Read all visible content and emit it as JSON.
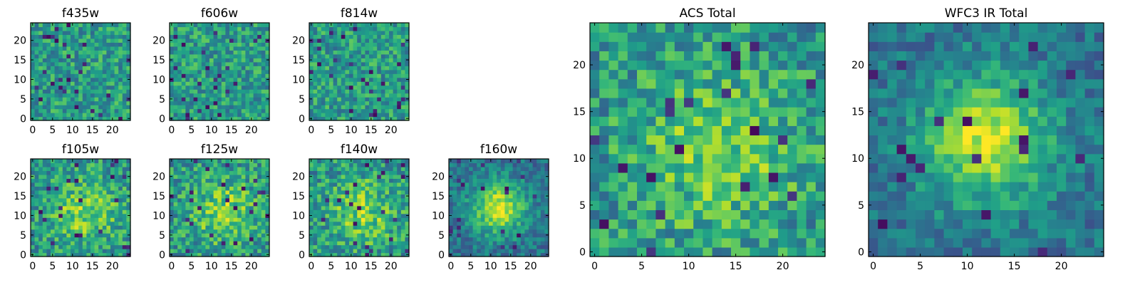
{
  "chart_data": [
    {
      "type": "heatmap",
      "title": "f435w",
      "field": "noise",
      "seed": 11,
      "colormap": "viridis",
      "xlim": [
        0,
        24
      ],
      "ylim": [
        0,
        24
      ],
      "x_ticks": [
        0,
        5,
        10,
        15,
        20
      ],
      "y_ticks": [
        0,
        5,
        10,
        15,
        20
      ]
    },
    {
      "type": "heatmap",
      "title": "f606w",
      "field": "noise",
      "seed": 23,
      "colormap": "viridis",
      "xlim": [
        0,
        24
      ],
      "ylim": [
        0,
        24
      ],
      "x_ticks": [
        0,
        5,
        10,
        15,
        20
      ],
      "y_ticks": [
        0,
        5,
        10,
        15,
        20
      ]
    },
    {
      "type": "heatmap",
      "title": "f814w",
      "field": "noise",
      "seed": 37,
      "colormap": "viridis",
      "xlim": [
        0,
        24
      ],
      "ylim": [
        0,
        24
      ],
      "x_ticks": [
        0,
        5,
        10,
        15,
        20
      ],
      "y_ticks": [
        0,
        5,
        10,
        15,
        20
      ]
    },
    {
      "type": "heatmap",
      "title": "f105w",
      "field": "faint-source",
      "seed": 41,
      "colormap": "viridis",
      "xlim": [
        0,
        24
      ],
      "ylim": [
        0,
        24
      ],
      "x_ticks": [
        0,
        5,
        10,
        15,
        20
      ],
      "y_ticks": [
        0,
        5,
        10,
        15,
        20
      ]
    },
    {
      "type": "heatmap",
      "title": "f125w",
      "field": "faint-source",
      "seed": 53,
      "colormap": "viridis",
      "xlim": [
        0,
        24
      ],
      "ylim": [
        0,
        24
      ],
      "x_ticks": [
        0,
        5,
        10,
        15,
        20
      ],
      "y_ticks": [
        0,
        5,
        10,
        15,
        20
      ]
    },
    {
      "type": "heatmap",
      "title": "f140w",
      "field": "faint-source",
      "seed": 67,
      "colormap": "viridis",
      "xlim": [
        0,
        24
      ],
      "ylim": [
        0,
        24
      ],
      "x_ticks": [
        0,
        5,
        10,
        15,
        20
      ],
      "y_ticks": [
        0,
        5,
        10,
        15,
        20
      ]
    },
    {
      "type": "heatmap",
      "title": "f160w",
      "field": "source",
      "seed": 79,
      "colormap": "viridis",
      "xlim": [
        0,
        24
      ],
      "ylim": [
        0,
        24
      ],
      "x_ticks": [
        0,
        5,
        10,
        15,
        20
      ],
      "y_ticks": [
        0,
        5,
        10,
        15,
        20
      ]
    },
    {
      "type": "heatmap",
      "title": "ACS Total",
      "field": "faint-source",
      "seed": 97,
      "colormap": "viridis",
      "xlim": [
        0,
        24
      ],
      "ylim": [
        0,
        24
      ],
      "x_ticks": [
        0,
        5,
        10,
        15,
        20
      ],
      "y_ticks": [
        0,
        5,
        10,
        15,
        20
      ]
    },
    {
      "type": "heatmap",
      "title": "WFC3 IR Total",
      "field": "source",
      "seed": 101,
      "colormap": "viridis",
      "xlim": [
        0,
        24
      ],
      "ylim": [
        0,
        24
      ],
      "x_ticks": [
        0,
        5,
        10,
        15,
        20
      ],
      "y_ticks": [
        0,
        5,
        10,
        15,
        20
      ]
    }
  ]
}
